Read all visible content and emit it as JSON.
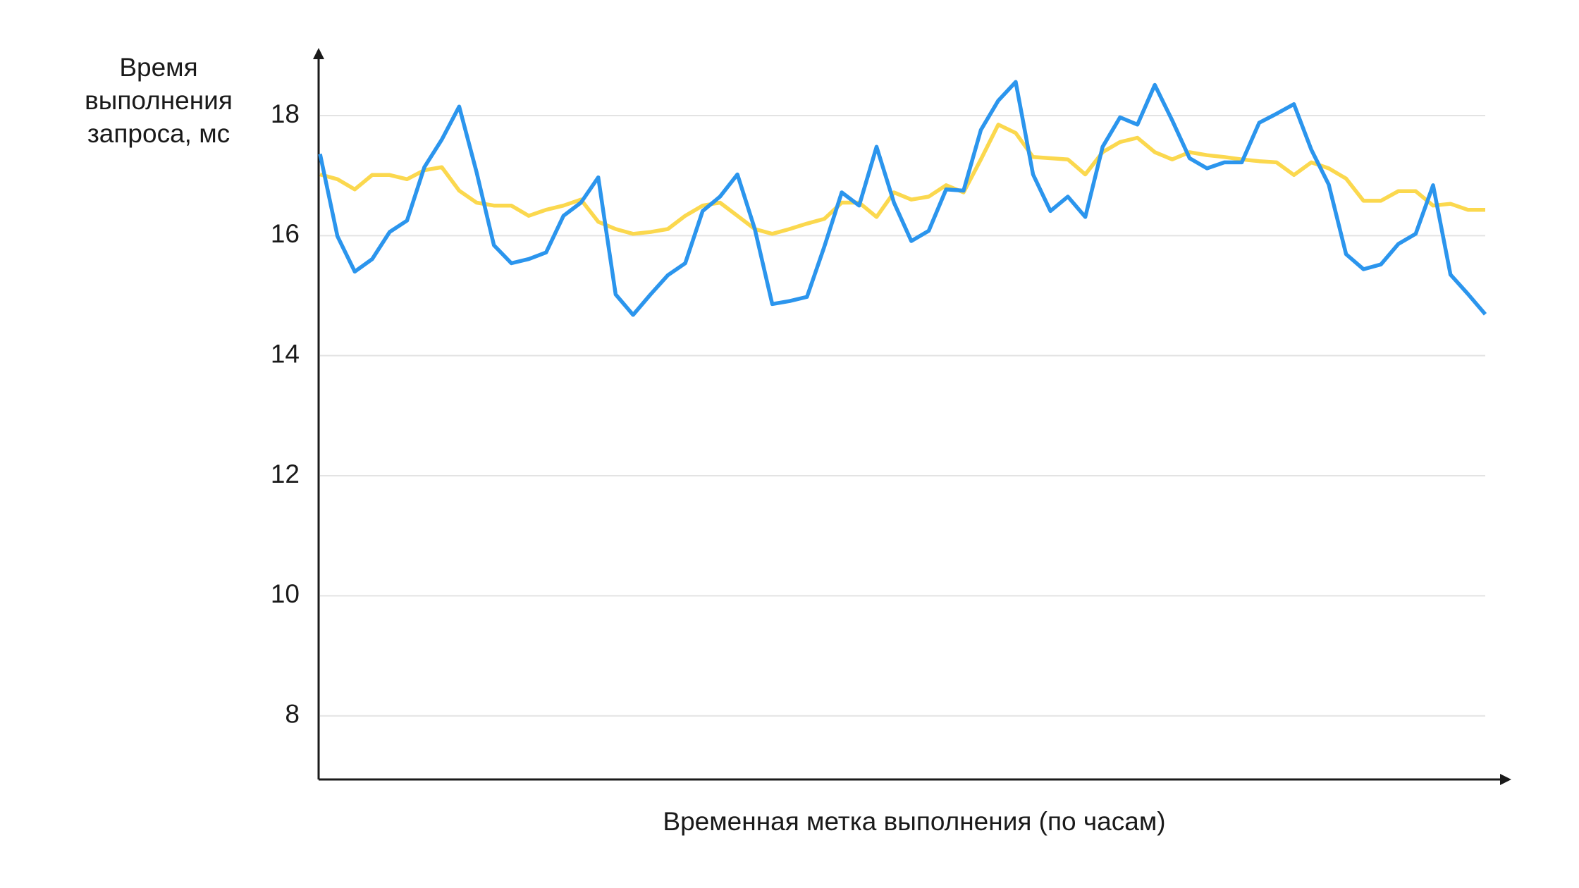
{
  "chart_data": {
    "type": "line",
    "y_label": "Время выполнения запроса, мс",
    "x_label": "Временная метка выполнения (по часам)",
    "x": [
      0,
      1,
      2,
      3,
      4,
      5,
      6,
      7,
      8,
      9,
      10,
      11,
      12,
      13,
      14,
      15,
      16,
      17,
      18,
      19,
      20,
      21,
      22,
      23,
      24,
      25,
      26,
      27,
      28,
      29,
      30,
      31,
      32,
      33,
      34,
      35,
      36,
      37,
      38,
      39,
      40,
      41,
      42,
      43,
      44,
      45,
      46,
      47,
      48,
      49,
      50,
      51,
      52,
      53,
      54,
      55,
      56,
      57,
      58,
      59,
      60,
      61,
      62,
      63,
      64,
      65,
      66,
      67
    ],
    "xlim": [
      0,
      67
    ],
    "ylim": [
      6.94,
      19.08
    ],
    "yticks": [
      8,
      10,
      12,
      14,
      16,
      18
    ],
    "grid": true,
    "series": [
      {
        "color": "#2b95ed",
        "values": [
          17.36,
          15.99,
          15.4,
          15.61,
          16.06,
          16.25,
          17.14,
          17.6,
          18.15,
          17.06,
          15.84,
          15.54,
          15.61,
          15.72,
          16.33,
          16.55,
          16.97,
          15.02,
          14.68,
          15.02,
          15.34,
          15.54,
          16.41,
          16.65,
          17.02,
          16.11,
          14.86,
          14.91,
          14.98,
          15.82,
          16.72,
          16.5,
          17.48,
          16.55,
          15.91,
          16.08,
          16.77,
          16.75,
          17.76,
          18.25,
          18.56,
          17.02,
          16.41,
          16.65,
          16.31,
          17.48,
          17.97,
          17.85,
          18.51,
          17.92,
          17.29,
          17.12,
          17.22,
          17.22,
          17.88,
          18.03,
          18.19,
          17.43,
          16.85,
          15.69,
          15.44,
          15.52,
          15.86,
          16.03,
          16.84,
          15.35,
          15.03,
          14.69
        ]
      },
      {
        "color": "#fbd84e",
        "values": [
          17.02,
          16.94,
          16.77,
          17.01,
          17.01,
          16.94,
          17.09,
          17.14,
          16.75,
          16.55,
          16.5,
          16.5,
          16.33,
          16.43,
          16.5,
          16.6,
          16.23,
          16.11,
          16.03,
          16.06,
          16.11,
          16.33,
          16.5,
          16.55,
          16.33,
          16.11,
          16.03,
          16.11,
          16.2,
          16.28,
          16.55,
          16.55,
          16.31,
          16.72,
          16.6,
          16.65,
          16.84,
          16.72,
          17.27,
          17.85,
          17.71,
          17.31,
          17.29,
          17.27,
          17.02,
          17.39,
          17.56,
          17.63,
          17.39,
          17.27,
          17.39,
          17.34,
          17.31,
          17.27,
          17.24,
          17.22,
          17.01,
          17.22,
          17.12,
          16.95,
          16.58,
          16.58,
          16.74,
          16.74,
          16.5,
          16.53,
          16.43,
          16.43
        ]
      }
    ]
  }
}
